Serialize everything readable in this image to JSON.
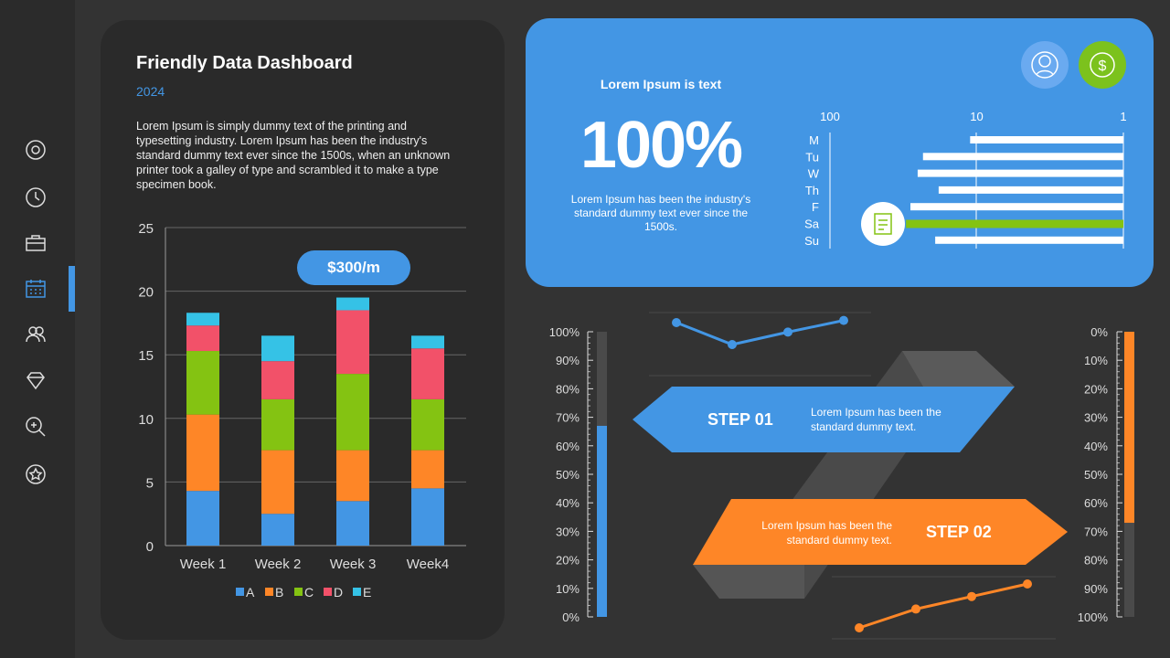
{
  "sidebar": {
    "items": [
      "settings-icon",
      "clock-icon",
      "briefcase-icon",
      "calendar-icon",
      "users-icon",
      "diamond-icon",
      "zoom-icon",
      "star-icon"
    ],
    "active_index": 3,
    "accent": "#4396e4"
  },
  "card": {
    "title": "Friendly Data Dashboard",
    "year": "2024",
    "description": "Lorem Ipsum is simply dummy text of the printing and typesetting industry. Lorem Ipsum has been the industry's standard dummy text ever since the 1500s, when an unknown printer took a galley of type and scrambled it to make a type specimen book.",
    "badge": "$300/m"
  },
  "highlight": {
    "heading": "Lorem Ipsum is text",
    "big_value": "100%",
    "text": "Lorem Ipsum has been the industry's standard dummy text ever since the 1500s.",
    "icons": [
      "user-icon",
      "dollar-icon",
      "notepad-icon"
    ]
  },
  "steps": [
    {
      "label": "STEP 01",
      "text": "Lorem Ipsum has been the standard dummy text.",
      "color": "#4396e4"
    },
    {
      "label": "STEP 02",
      "text": "Lorem Ipsum has been the standard dummy text.",
      "color": "#fe8627"
    }
  ],
  "chart_data": [
    {
      "type": "bar",
      "stacked": true,
      "categories": [
        "Week 1",
        "Week 2",
        "Week 3",
        "Week4"
      ],
      "series": [
        {
          "name": "A",
          "color": "#4396e4",
          "values": [
            4.3,
            2.5,
            3.5,
            4.5
          ]
        },
        {
          "name": "B",
          "color": "#fe8627",
          "values": [
            6,
            5,
            4,
            3
          ]
        },
        {
          "name": "C",
          "color": "#84c312",
          "values": [
            5,
            4,
            6,
            4
          ]
        },
        {
          "name": "D",
          "color": "#f25169",
          "values": [
            2,
            3,
            5,
            4
          ]
        },
        {
          "name": "E",
          "color": "#35c2e6",
          "values": [
            1,
            2,
            1,
            1
          ]
        }
      ],
      "ylim": [
        0,
        25
      ],
      "yticks": [
        "0",
        "5",
        "10",
        "15",
        "20",
        "25"
      ],
      "grid": true,
      "legend": "bottom"
    },
    {
      "type": "bar",
      "orientation": "horizontal",
      "scale": "log",
      "reversed": true,
      "categories": [
        "M",
        "Tu",
        "W",
        "Th",
        "F",
        "Sa",
        "Su"
      ],
      "values": [
        11,
        23,
        25,
        18,
        28,
        30,
        19
      ],
      "highlight": "Sa",
      "highlight_color": "#84c312",
      "xticks": [
        "100",
        "10",
        "1"
      ]
    },
    {
      "type": "gauge",
      "ticks": [
        "100%",
        "90%",
        "80%",
        "70%",
        "60%",
        "50%",
        "40%",
        "30%",
        "20%",
        "10%",
        "0%"
      ],
      "value": 67,
      "color": "#4396e4"
    },
    {
      "type": "gauge",
      "ticks": [
        "0%",
        "10%",
        "20%",
        "30%",
        "40%",
        "50%",
        "60%",
        "70%",
        "80%",
        "90%",
        "100%"
      ],
      "value": 67,
      "color": "#fe8627",
      "reversed": true
    },
    {
      "type": "line",
      "values": [
        4,
        1,
        2.7,
        4.3
      ],
      "color": "#4396e4"
    },
    {
      "type": "line",
      "values": [
        1,
        2.5,
        3.5,
        4.5
      ],
      "color": "#fe8627"
    }
  ]
}
